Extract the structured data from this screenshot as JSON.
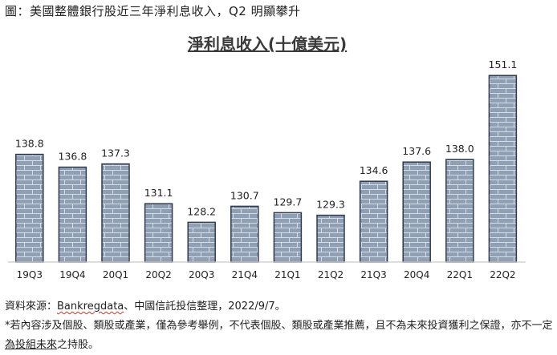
{
  "caption": "圖：美國整體銀行股近三年淨利息收入，Q2 明顯攀升",
  "source": {
    "prefix": "資料來源：",
    "provider": "Bankregdata",
    "suffix": "、中國信託投信整理，2022/9/7。"
  },
  "note": {
    "text_before": "*若內容涉及個股、類股或產業，僅為參考舉例，不代表個股、類股或產業推薦，且不為未來投資獲利之保證，亦不一定",
    "underlined": "為投組未來",
    "text_after": "之持股。"
  },
  "colors": {
    "bar_fill": "#8f9fb4",
    "bar_edge": "#2f3b4c",
    "brick_line": "#d7dde6"
  },
  "chart_data": {
    "type": "bar",
    "title": "淨利息收入(十億美元)",
    "categories": [
      "19Q3",
      "19Q4",
      "20Q1",
      "20Q2",
      "20Q3",
      "21Q4",
      "21Q1",
      "21Q2",
      "21Q3",
      "20Q4",
      "22Q1",
      "22Q2"
    ],
    "values": [
      138.8,
      136.8,
      137.3,
      131.1,
      128.2,
      130.7,
      129.7,
      129.3,
      134.6,
      137.6,
      138.0,
      151.1
    ],
    "value_labels": [
      "138.8",
      "136.8",
      "137.3",
      "131.1",
      "128.2",
      "130.7",
      "129.7",
      "129.3",
      "134.6",
      "137.6",
      "138.0",
      "151.1"
    ],
    "ylim": [
      122,
      152
    ],
    "grid": false,
    "legend": "none",
    "xlabel": "",
    "ylabel": ""
  }
}
